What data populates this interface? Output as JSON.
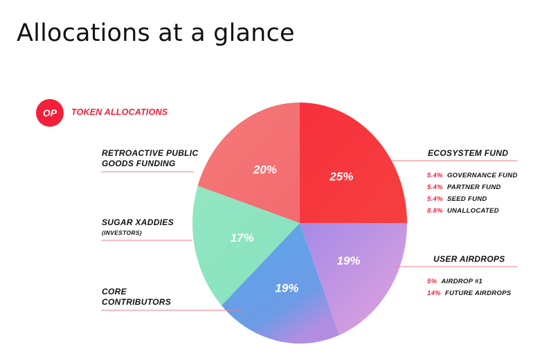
{
  "page": {
    "title": "Allocations at a glance"
  },
  "header": {
    "badge_text": "OP",
    "title": "TOKEN ALLOCATIONS"
  },
  "colors": {
    "accent": "#f2203a",
    "ecosystem": "#f4313f",
    "retro": "#f36c6e",
    "sugar": "#8ce4bf",
    "core": "#5ca7e6",
    "airdrop": "#c79ae6"
  },
  "chart_data": {
    "type": "pie",
    "title": "TOKEN ALLOCATIONS",
    "slices": [
      {
        "key": "ecosystem",
        "label": "ECOSYSTEM FUND",
        "value": 25,
        "value_label": "25%",
        "breakdown": [
          {
            "pct": "5.4%",
            "label": "GOVERNANCE FUND"
          },
          {
            "pct": "5.4%",
            "label": "PARTNER FUND"
          },
          {
            "pct": "5.4%",
            "label": "SEED FUND"
          },
          {
            "pct": "8.8%",
            "label": "UNALLOCATED"
          }
        ]
      },
      {
        "key": "airdrop",
        "label": "USER AIRDROPS",
        "value": 19,
        "value_label": "19%",
        "breakdown": [
          {
            "pct": "5%",
            "label": "AIRDROP #1"
          },
          {
            "pct": "14%",
            "label": "FUTURE AIRDROPS"
          }
        ]
      },
      {
        "key": "core",
        "label": "CORE CONTRIBUTORS",
        "value": 19,
        "value_label": "19%"
      },
      {
        "key": "sugar",
        "label": "SUGAR XADDIES",
        "sublabel": "(INVESTORS)",
        "value": 17,
        "value_label": "17%"
      },
      {
        "key": "retro",
        "label": "RETROACTIVE PUBLIC GOODS FUNDING",
        "value": 20,
        "value_label": "20%"
      }
    ]
  },
  "labels": {
    "retro_line1": "RETROACTIVE PUBLIC",
    "retro_line2": "GOODS FUNDING",
    "sugar_line1": "SUGAR XADDIES",
    "sugar_line2": "(INVESTORS)",
    "core_line1": "CORE",
    "core_line2": "CONTRIBUTORS",
    "ecosystem": "ECOSYSTEM FUND",
    "airdrops": "USER AIRDROPS"
  }
}
